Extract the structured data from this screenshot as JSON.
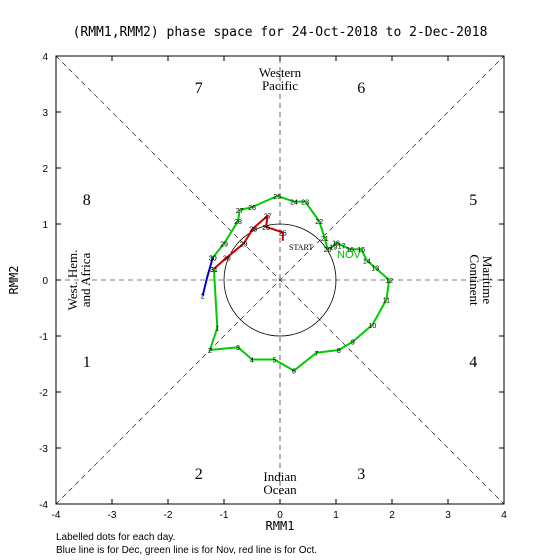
{
  "chart_data": {
    "type": "line",
    "title": "(RMM1,RMM2) phase space for 24-Oct-2018 to  2-Dec-2018",
    "xlabel": "RMM1",
    "ylabel": "RMM2",
    "xlim": [
      -4,
      4
    ],
    "ylim": [
      -4,
      4
    ],
    "x_ticks": [
      "-4",
      "-3",
      "-2",
      "-1",
      "0",
      "1",
      "2",
      "3",
      "4"
    ],
    "y_ticks": [
      "-4",
      "-3",
      "-2",
      "-1",
      "0",
      "1",
      "2",
      "3",
      "4"
    ],
    "grid": false,
    "phases": [
      {
        "number": "1",
        "x": -3.45,
        "y": -1.45
      },
      {
        "number": "2",
        "x": -1.45,
        "y": -3.45
      },
      {
        "number": "3",
        "x": 1.45,
        "y": -3.45
      },
      {
        "number": "4",
        "x": 3.45,
        "y": -1.45
      },
      {
        "number": "5",
        "x": 3.45,
        "y": 1.45
      },
      {
        "number": "6",
        "x": 1.45,
        "y": 3.45
      },
      {
        "number": "7",
        "x": -1.45,
        "y": 3.45
      },
      {
        "number": "8",
        "x": -3.45,
        "y": 1.45
      }
    ],
    "region_labels": {
      "top": [
        "Western",
        "Pacific"
      ],
      "bottom": [
        "Indian",
        "Ocean"
      ],
      "left": [
        "West. Hem.",
        "and Africa"
      ],
      "right": [
        "Maritime",
        "Continent"
      ]
    },
    "start_label": "START",
    "month_marker": "NOV",
    "series": [
      {
        "name": "Oct",
        "color": "#cc0000",
        "points": [
          {
            "x": 0.05,
            "y": 0.7,
            "label": ""
          },
          {
            "x": 0.05,
            "y": 0.85,
            "label": "25"
          },
          {
            "x": -0.25,
            "y": 0.95,
            "label": "26"
          },
          {
            "x": -0.22,
            "y": 1.15,
            "label": "27"
          },
          {
            "x": -0.48,
            "y": 0.92,
            "label": "28"
          },
          {
            "x": -0.65,
            "y": 0.65,
            "label": "29"
          },
          {
            "x": -0.95,
            "y": 0.4,
            "label": "30"
          },
          {
            "x": -1.18,
            "y": 0.2,
            "label": "31"
          }
        ]
      },
      {
        "name": "Nov",
        "color": "#00cc00",
        "points": [
          {
            "x": -1.18,
            "y": 0.2,
            "label": "31"
          },
          {
            "x": -1.12,
            "y": -0.85,
            "label": "1"
          },
          {
            "x": -1.25,
            "y": -1.25,
            "label": "2"
          },
          {
            "x": -0.75,
            "y": -1.2,
            "label": "3"
          },
          {
            "x": -0.5,
            "y": -1.42,
            "label": "4"
          },
          {
            "x": -0.1,
            "y": -1.42,
            "label": "5"
          },
          {
            "x": 0.25,
            "y": -1.62,
            "label": "6"
          },
          {
            "x": 0.65,
            "y": -1.3,
            "label": "7"
          },
          {
            "x": 1.05,
            "y": -1.25,
            "label": "8"
          },
          {
            "x": 1.3,
            "y": -1.1,
            "label": "9"
          },
          {
            "x": 1.65,
            "y": -0.8,
            "label": "10"
          },
          {
            "x": 1.9,
            "y": -0.35,
            "label": "11"
          },
          {
            "x": 1.95,
            "y": 0.0,
            "label": "12"
          },
          {
            "x": 1.7,
            "y": 0.22,
            "label": "13"
          },
          {
            "x": 1.55,
            "y": 0.35,
            "label": "14"
          },
          {
            "x": 1.45,
            "y": 0.55,
            "label": "15"
          },
          {
            "x": 1.25,
            "y": 0.55,
            "label": "16"
          },
          {
            "x": 1.1,
            "y": 0.62,
            "label": "17"
          },
          {
            "x": 1.0,
            "y": 0.67,
            "label": "18"
          },
          {
            "x": 0.95,
            "y": 0.6,
            "label": "19"
          },
          {
            "x": 0.85,
            "y": 0.55,
            "label": "20"
          },
          {
            "x": 0.8,
            "y": 0.75,
            "label": "21"
          },
          {
            "x": 0.7,
            "y": 1.05,
            "label": "22"
          },
          {
            "x": 0.45,
            "y": 1.4,
            "label": "23"
          },
          {
            "x": 0.25,
            "y": 1.4,
            "label": "24"
          },
          {
            "x": -0.05,
            "y": 1.5,
            "label": "25"
          },
          {
            "x": -0.5,
            "y": 1.3,
            "label": "26"
          },
          {
            "x": -0.72,
            "y": 1.25,
            "label": "27"
          },
          {
            "x": -0.75,
            "y": 1.05,
            "label": "28"
          },
          {
            "x": -1.0,
            "y": 0.65,
            "label": "29"
          },
          {
            "x": -1.2,
            "y": 0.4,
            "label": "30"
          }
        ]
      },
      {
        "name": "Dec",
        "color": "#0000cc",
        "points": [
          {
            "x": -1.2,
            "y": 0.4,
            "label": "30"
          },
          {
            "x": -1.3,
            "y": 0.05,
            "label": ""
          },
          {
            "x": -1.38,
            "y": -0.28,
            "label": "2"
          }
        ]
      }
    ],
    "footnotes": [
      "Labelled dots for each day.",
      "Blue line is for Dec, green line is for Nov, red line is for Oct."
    ]
  }
}
